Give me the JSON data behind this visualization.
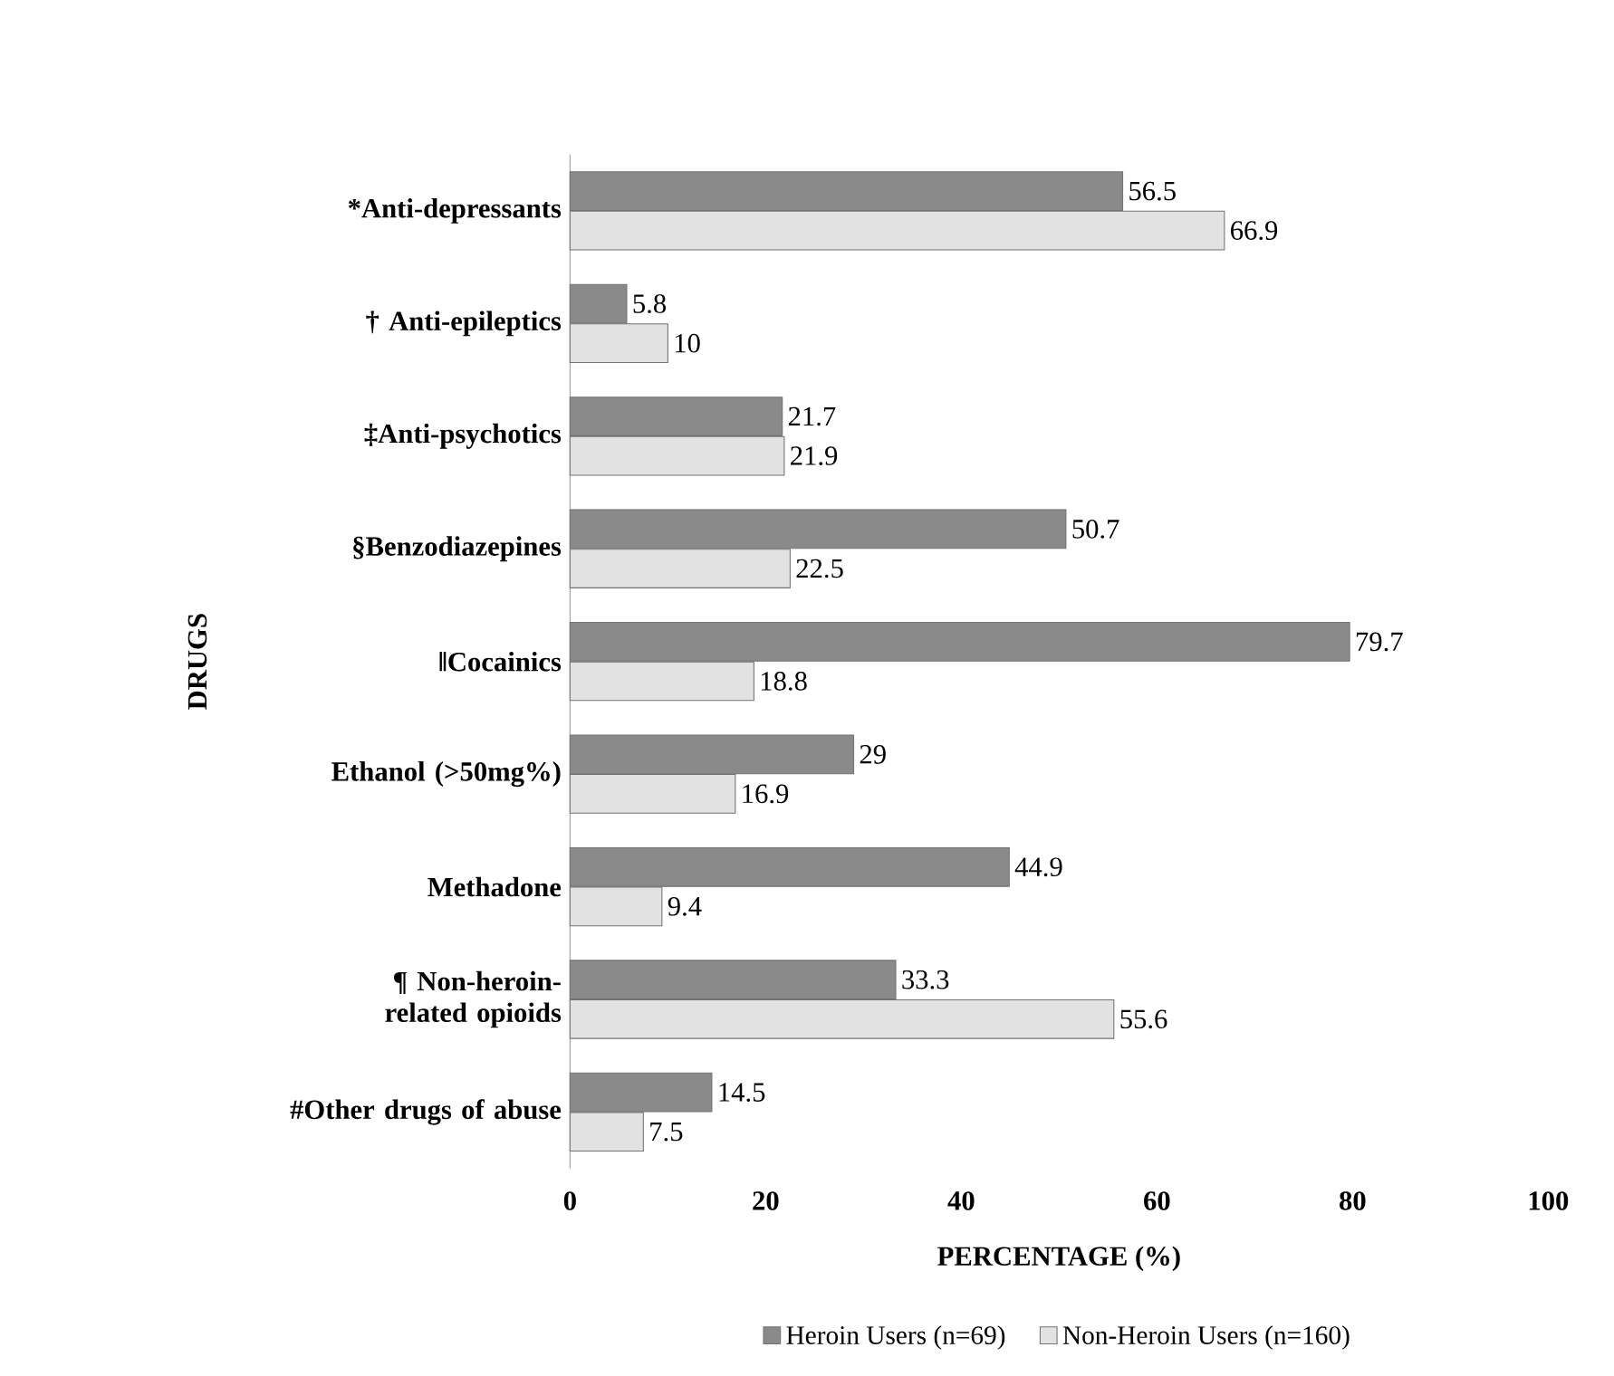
{
  "chart_data": {
    "type": "bar",
    "orientation": "horizontal",
    "xlabel": "PERCENTAGE (%)",
    "ylabel": "DRUGS",
    "categories": [
      "*Anti-depressants",
      "† Anti-epileptics",
      "‡Anti-psychotics",
      "§Benzodiazepines",
      "‖Cocainics",
      "Ethanol (>50mg%)",
      "Methadone",
      "¶ Non-heroin-related opioids",
      "#Other drugs of abuse"
    ],
    "series": [
      {
        "name": "Heroin Users (n=69)",
        "color": "#8a8a8a",
        "values": [
          56.5,
          5.8,
          21.7,
          50.7,
          79.7,
          29,
          44.9,
          33.3,
          14.5
        ]
      },
      {
        "name": "Non-Heroin Users (n=160)",
        "color": "#e2e2e2",
        "values": [
          66.9,
          10,
          21.9,
          22.5,
          18.8,
          16.9,
          9.4,
          55.6,
          7.5
        ]
      }
    ],
    "xlim": [
      0,
      100
    ],
    "xticks": [
      0,
      20,
      40,
      60,
      80,
      100
    ],
    "data_labels": true,
    "legend": "bottom",
    "grid": false
  }
}
